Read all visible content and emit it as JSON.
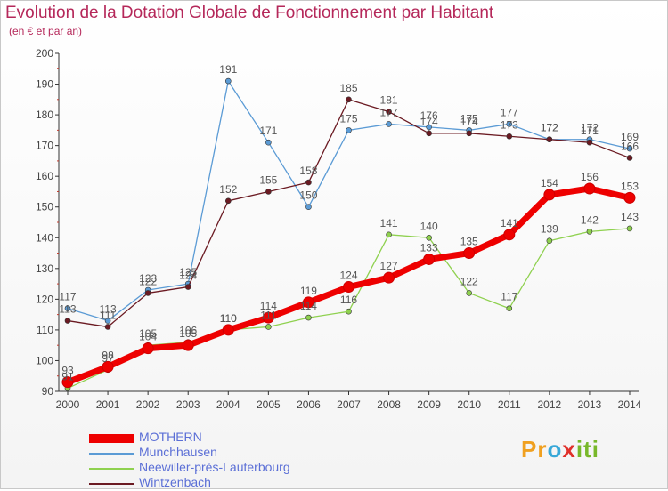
{
  "chart_data": {
    "type": "line",
    "title": "Evolution de la Dotation Globale de Fonctionnement par Habitant",
    "subtitle": "(en € et par an)",
    "xlabel": "",
    "ylabel": "",
    "ylim": [
      90,
      200
    ],
    "yticks": [
      90,
      100,
      110,
      120,
      130,
      140,
      150,
      160,
      170,
      180,
      190,
      200
    ],
    "categories": [
      "2000",
      "2001",
      "2002",
      "2003",
      "2004",
      "2005",
      "2006",
      "2007",
      "2008",
      "2009",
      "2010",
      "2011",
      "2012",
      "2013",
      "2014"
    ],
    "grid": false,
    "legend_position": "bottom-left",
    "series": [
      {
        "name": "MOTHERN",
        "color": "#ee0000",
        "values": [
          93,
          98,
          104,
          105,
          110,
          114,
          119,
          124,
          127,
          133,
          135,
          141,
          154,
          156,
          153
        ]
      },
      {
        "name": "Munchhausen",
        "color": "#5b9bd5",
        "values": [
          117,
          113,
          123,
          125,
          191,
          171,
          150,
          175,
          177,
          176,
          175,
          177,
          172,
          172,
          169
        ]
      },
      {
        "name": "Neewiller-près-Lauterbourg",
        "color": "#8fd14f",
        "values": [
          91,
          97,
          105,
          106,
          110,
          111,
          114,
          116,
          141,
          140,
          122,
          117,
          139,
          142,
          143
        ]
      },
      {
        "name": "Wintzenbach",
        "color": "#6b1a22",
        "values": [
          113,
          111,
          122,
          124,
          152,
          155,
          158,
          185,
          181,
          174,
          174,
          173,
          172,
          171,
          166
        ]
      }
    ]
  },
  "logo": {
    "part1": "Pr",
    "part2": "o",
    "part3": "x",
    "part4": "iti"
  }
}
